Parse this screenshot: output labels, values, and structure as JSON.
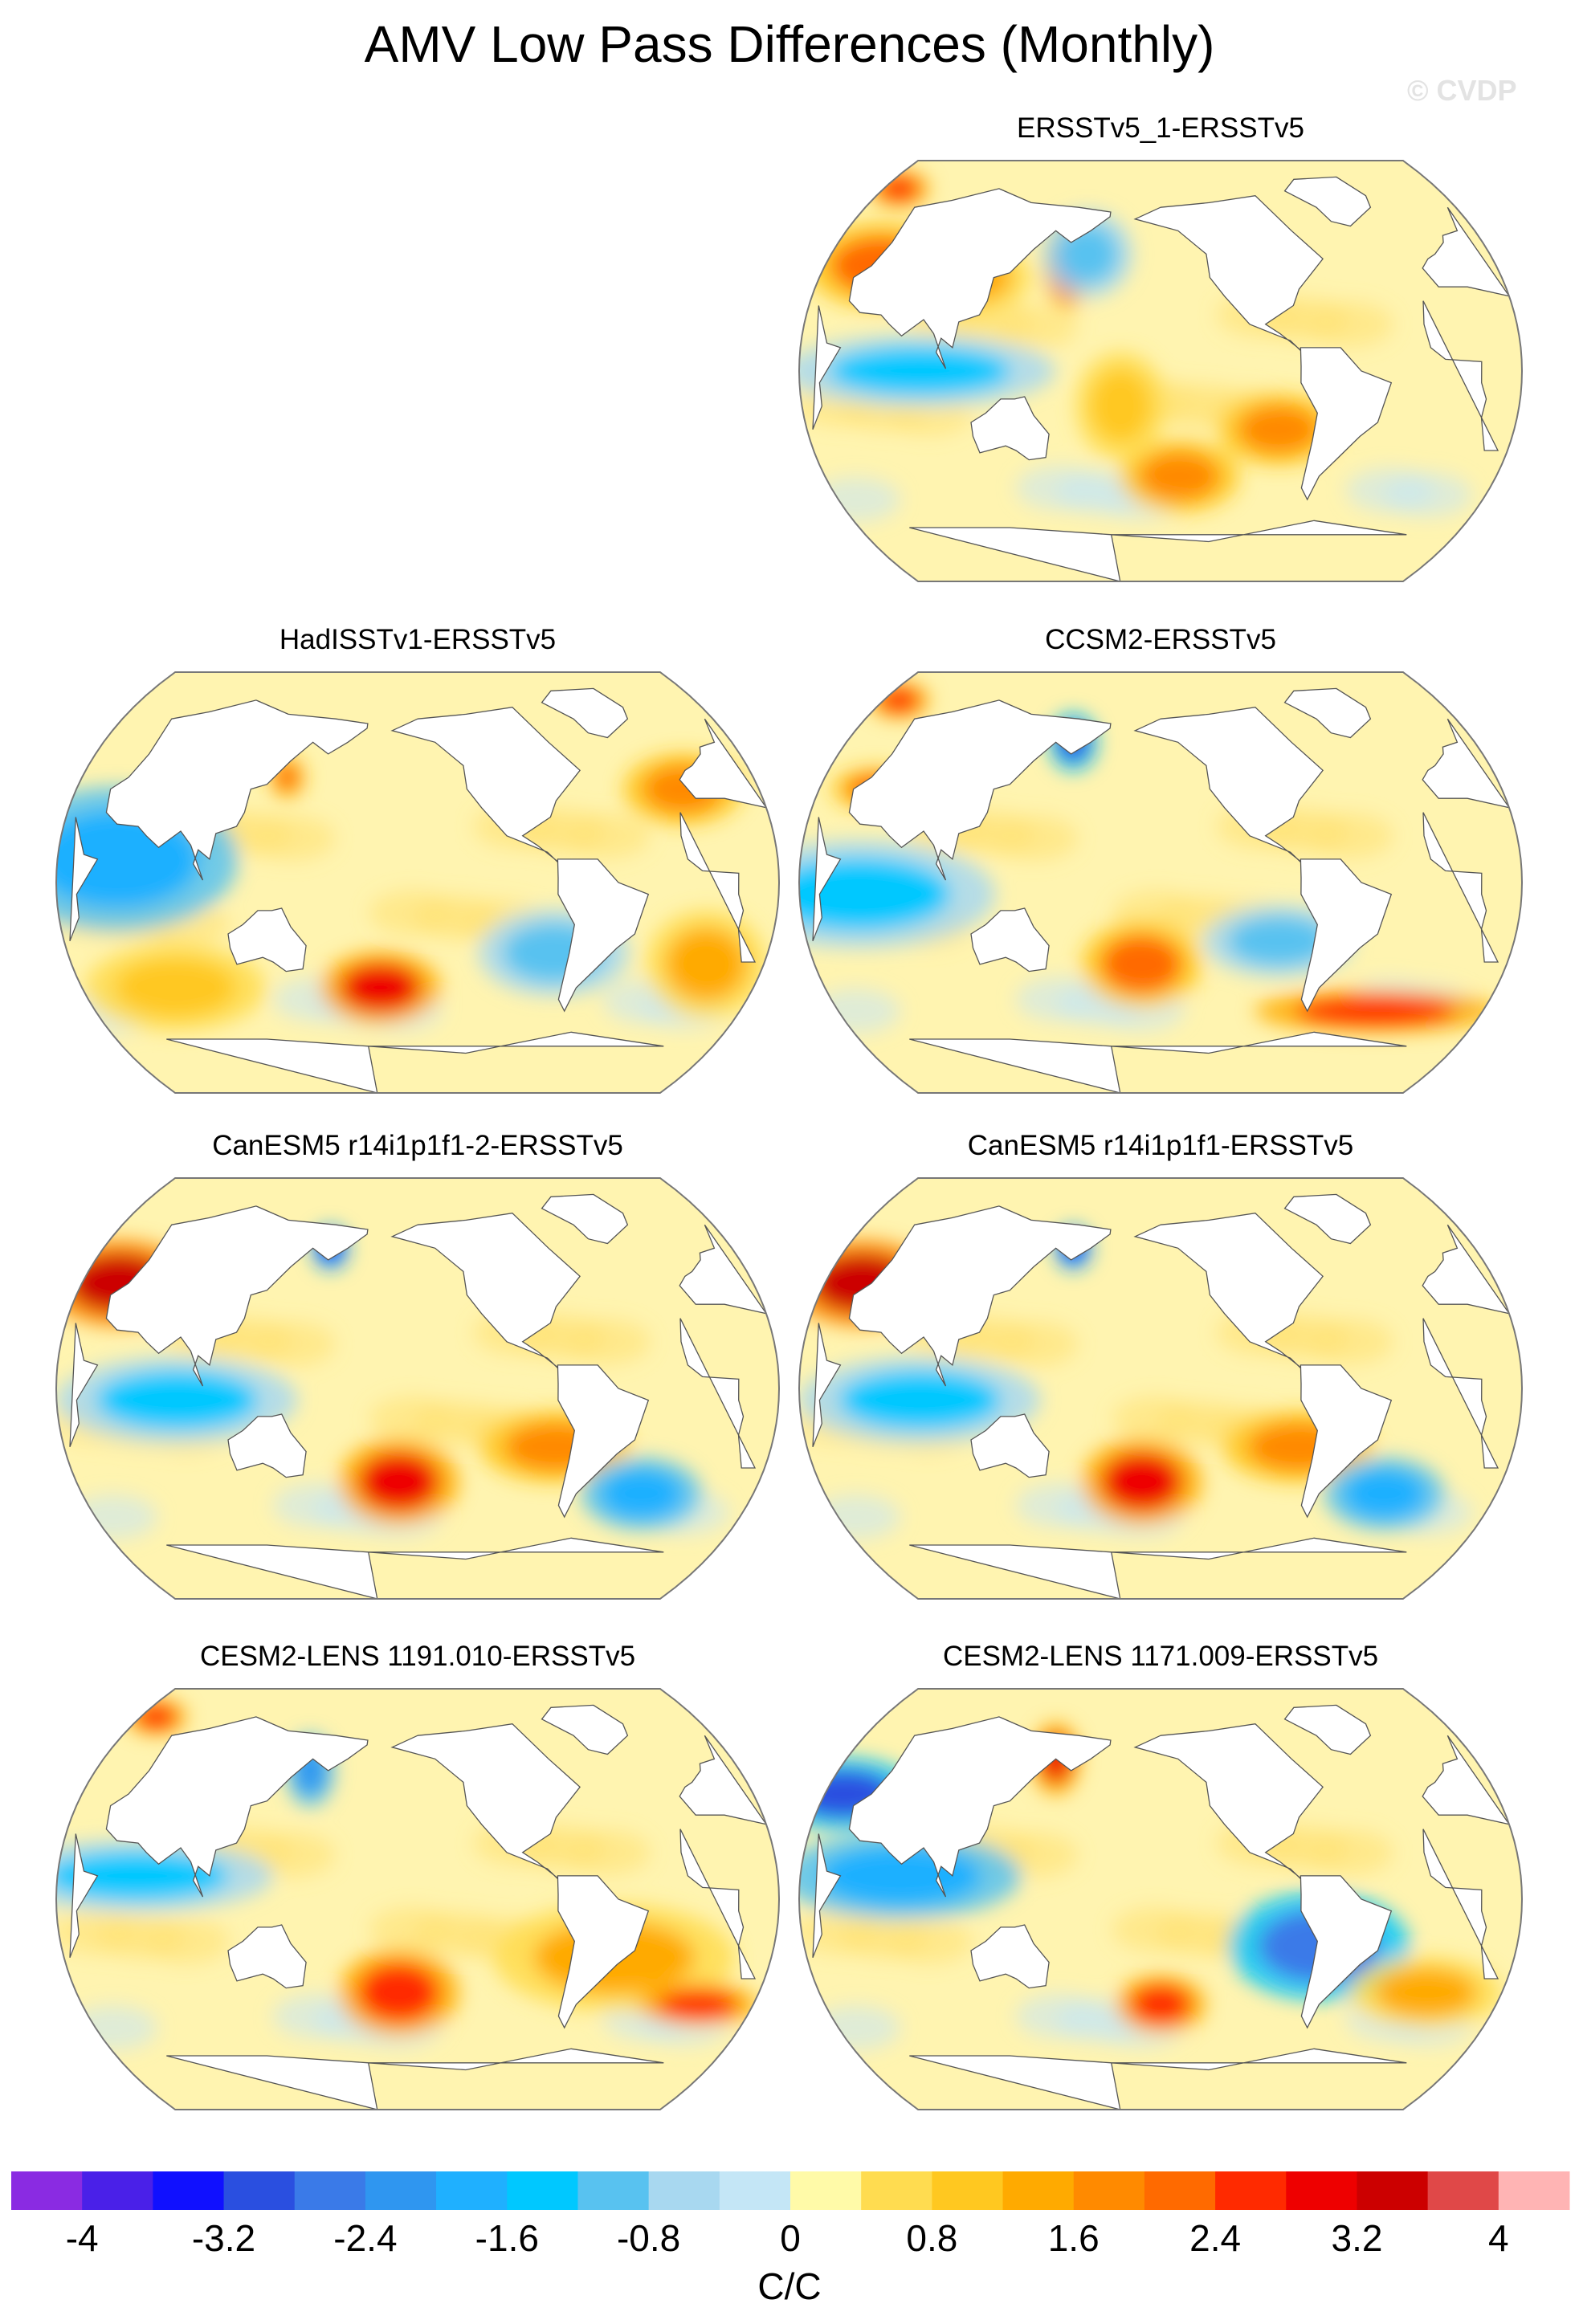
{
  "title": "AMV Low Pass Differences (Monthly)",
  "watermark": "© CVDP",
  "panels": [
    {
      "label": "ERSSTv5_1-ERSSTv5",
      "pattern": [
        {
          "x": -150,
          "y": 45,
          "v": 2.2,
          "rx": 25,
          "ry": 12
        },
        {
          "x": -100,
          "y": 40,
          "v": 1.2,
          "rx": 20,
          "ry": 10
        },
        {
          "x": -50,
          "y": 45,
          "v": 2.8,
          "rx": 8,
          "ry": 12
        },
        {
          "x": -40,
          "y": 50,
          "v": -1.2,
          "rx": 15,
          "ry": 12
        },
        {
          "x": -120,
          "y": 0,
          "v": -1.4,
          "rx": 45,
          "ry": 10
        },
        {
          "x": 60,
          "y": -25,
          "v": 1.6,
          "rx": 20,
          "ry": 10
        },
        {
          "x": 10,
          "y": -45,
          "v": 1.9,
          "rx": 20,
          "ry": 10
        },
        {
          "x": -20,
          "y": -15,
          "v": 1.0,
          "rx": 15,
          "ry": 15
        },
        {
          "x": -170,
          "y": 78,
          "v": 2.6,
          "rx": 10,
          "ry": 5
        }
      ]
    },
    {
      "label": "HadISSTv1-ERSSTv5",
      "pattern": [
        {
          "x": -150,
          "y": 10,
          "v": -1.8,
          "rx": 40,
          "ry": 20
        },
        {
          "x": -130,
          "y": -45,
          "v": 1.1,
          "rx": 30,
          "ry": 12
        },
        {
          "x": -20,
          "y": -45,
          "v": 2.9,
          "rx": 20,
          "ry": 10
        },
        {
          "x": 140,
          "y": 40,
          "v": 1.6,
          "rx": 20,
          "ry": 10
        },
        {
          "x": 70,
          "y": -30,
          "v": -1.2,
          "rx": 25,
          "ry": 12
        },
        {
          "x": -70,
          "y": 45,
          "v": 2.2,
          "rx": 6,
          "ry": 6
        },
        {
          "x": 150,
          "y": -35,
          "v": 1.4,
          "rx": 20,
          "ry": 15
        }
      ]
    },
    {
      "label": "CCSM2-ERSSTv5",
      "pattern": [
        {
          "x": -150,
          "y": -5,
          "v": -1.4,
          "rx": 45,
          "ry": 15
        },
        {
          "x": -150,
          "y": 40,
          "v": 2.0,
          "rx": 15,
          "ry": 6
        },
        {
          "x": -50,
          "y": 60,
          "v": -3.0,
          "rx": 8,
          "ry": 8
        },
        {
          "x": 120,
          "y": -55,
          "v": 2.6,
          "rx": 40,
          "ry": 6
        },
        {
          "x": -10,
          "y": -35,
          "v": 2.0,
          "rx": 20,
          "ry": 12
        },
        {
          "x": 60,
          "y": -25,
          "v": -1.0,
          "rx": 25,
          "ry": 10
        },
        {
          "x": -170,
          "y": 78,
          "v": 2.6,
          "rx": 10,
          "ry": 5
        }
      ]
    },
    {
      "label": "CanESM5 r14i1p1f1-2-ERSSTv5",
      "pattern": [
        {
          "x": -160,
          "y": 45,
          "v": 3.2,
          "rx": 25,
          "ry": 12
        },
        {
          "x": -120,
          "y": -5,
          "v": -1.4,
          "rx": 40,
          "ry": 12
        },
        {
          "x": -50,
          "y": 60,
          "v": -3.4,
          "rx": 6,
          "ry": 6
        },
        {
          "x": -10,
          "y": -40,
          "v": 2.8,
          "rx": 20,
          "ry": 12
        },
        {
          "x": 70,
          "y": -25,
          "v": 1.8,
          "rx": 25,
          "ry": 10
        },
        {
          "x": 120,
          "y": -45,
          "v": -1.8,
          "rx": 20,
          "ry": 10
        }
      ]
    },
    {
      "label": "CanESM5 r14i1p1f1-ERSSTv5",
      "pattern": [
        {
          "x": -160,
          "y": 45,
          "v": 3.2,
          "rx": 25,
          "ry": 12
        },
        {
          "x": -120,
          "y": -5,
          "v": -1.4,
          "rx": 40,
          "ry": 12
        },
        {
          "x": -50,
          "y": 60,
          "v": -3.4,
          "rx": 6,
          "ry": 6
        },
        {
          "x": -10,
          "y": -40,
          "v": 2.8,
          "rx": 20,
          "ry": 12
        },
        {
          "x": 70,
          "y": -25,
          "v": 1.8,
          "rx": 25,
          "ry": 10
        },
        {
          "x": 120,
          "y": -45,
          "v": -1.8,
          "rx": 20,
          "ry": 10
        }
      ]
    },
    {
      "label": "CESM2-LENS 1191.010-ERSSTv5",
      "pattern": [
        {
          "x": -140,
          "y": 10,
          "v": -1.6,
          "rx": 45,
          "ry": 10
        },
        {
          "x": -60,
          "y": 55,
          "v": -2.4,
          "rx": 8,
          "ry": 10
        },
        {
          "x": -10,
          "y": -40,
          "v": 2.6,
          "rx": 20,
          "ry": 12
        },
        {
          "x": 100,
          "y": -25,
          "v": 1.4,
          "rx": 40,
          "ry": 15
        },
        {
          "x": 150,
          "y": -45,
          "v": 2.4,
          "rx": 20,
          "ry": 6
        },
        {
          "x": -170,
          "y": 78,
          "v": 2.6,
          "rx": 10,
          "ry": 5
        }
      ]
    },
    {
      "label": "CESM2-LENS 1171.009-ERSSTv5",
      "pattern": [
        {
          "x": -170,
          "y": 45,
          "v": -3.0,
          "rx": 25,
          "ry": 10
        },
        {
          "x": 80,
          "y": -20,
          "v": -2.8,
          "rx": 30,
          "ry": 15
        },
        {
          "x": -130,
          "y": 10,
          "v": -2.0,
          "rx": 40,
          "ry": 12
        },
        {
          "x": 0,
          "y": -45,
          "v": 2.4,
          "rx": 15,
          "ry": 8
        },
        {
          "x": -60,
          "y": 60,
          "v": 2.8,
          "rx": 8,
          "ry": 10
        },
        {
          "x": 140,
          "y": -40,
          "v": 1.2,
          "rx": 25,
          "ry": 10
        }
      ]
    }
  ],
  "chart_data": {
    "type": "heatmap",
    "title": "AMV Low Pass Differences (Monthly)",
    "projection": "Robinson (global, central longitude Pacific)",
    "series": [
      {
        "name": "ERSSTv5_1-ERSSTv5",
        "description": "warm N Pacific & NW Atlantic, cool equatorial Pacific"
      },
      {
        "name": "HadISSTv1-ERSSTv5",
        "description": "cool central/equatorial Pacific, warm S Atlantic"
      },
      {
        "name": "CCSM2-ERSSTv5",
        "description": "cool Labrador Sea, warm Southern Ocean"
      },
      {
        "name": "CanESM5 r14i1p1f1-2-ERSSTv5",
        "description": "strong warm N Pacific, cool Labrador Sea"
      },
      {
        "name": "CanESM5 r14i1p1f1-ERSSTv5",
        "description": "strong warm N Pacific, cool Labrador Sea"
      },
      {
        "name": "CESM2-LENS 1191.010-ERSSTv5",
        "description": "cool tropical Pacific, warm S Atlantic"
      },
      {
        "name": "CESM2-LENS 1171.009-ERSSTv5",
        "description": "cool NW Pacific & Indian Ocean"
      }
    ],
    "colorbar": {
      "levels": [
        -4,
        -3.6,
        -3.2,
        -2.8,
        -2.4,
        -2.0,
        -1.6,
        -1.2,
        -0.8,
        -0.4,
        0,
        0.4,
        0.8,
        1.2,
        1.6,
        2.0,
        2.4,
        2.8,
        3.2,
        3.6,
        4
      ],
      "tick_labels": [
        "-4",
        "-3.2",
        "-2.4",
        "-1.6",
        "-0.8",
        "0",
        "0.8",
        "1.6",
        "2.4",
        "3.2",
        "4"
      ],
      "tick_values": [
        -4,
        -3.2,
        -2.4,
        -1.6,
        -0.8,
        0,
        0.8,
        1.6,
        2.4,
        3.2,
        4
      ],
      "colors": [
        "#8a2be2",
        "#4a20e8",
        "#1010ff",
        "#2a4fe0",
        "#3a7ae8",
        "#2f96f0",
        "#1fb0ff",
        "#00c8ff",
        "#58c2f0",
        "#a8d8f0",
        "#c4e6f6",
        "#fffaa8",
        "#ffdc50",
        "#ffc820",
        "#ffaa00",
        "#ff8a00",
        "#ff6a00",
        "#ff2a00",
        "#ee0000",
        "#cc0000",
        "#e04848",
        "#ffb4b4"
      ],
      "units": "C/C"
    }
  }
}
